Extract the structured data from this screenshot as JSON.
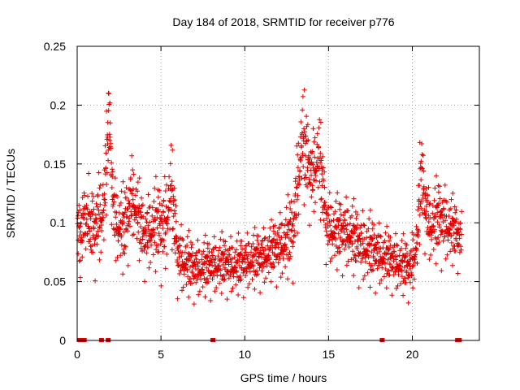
{
  "chart_data": {
    "type": "scatter",
    "title": "Day 184 of 2018, SRMTID for receiver p776",
    "xlabel": "GPS time / hours",
    "ylabel": "SRMTID / TECUs",
    "xlim": [
      0,
      24
    ],
    "ylim": [
      0,
      0.25
    ],
    "x_ticks": [
      0,
      5,
      10,
      15,
      20
    ],
    "x_tick_labels": [
      "0",
      "5",
      "10",
      "15",
      "20"
    ],
    "y_ticks": [
      0,
      0.05,
      0.1,
      0.15,
      0.2,
      0.25
    ],
    "y_tick_labels": [
      "0",
      "0.05",
      "0.1",
      "0.15",
      "0.2",
      "0.25"
    ],
    "grid": true,
    "marker": "plus",
    "color": "#e00000",
    "series": [
      {
        "name": "SRMTID",
        "trend": [
          [
            0.0,
            0.085,
            0.03
          ],
          [
            0.5,
            0.095,
            0.03
          ],
          [
            1.0,
            0.085,
            0.03
          ],
          [
            1.6,
            0.105,
            0.035
          ],
          [
            1.9,
            0.18,
            0.03
          ],
          [
            2.2,
            0.095,
            0.03
          ],
          [
            2.8,
            0.085,
            0.03
          ],
          [
            3.3,
            0.115,
            0.03
          ],
          [
            4.0,
            0.08,
            0.025
          ],
          [
            4.6,
            0.09,
            0.03
          ],
          [
            5.2,
            0.085,
            0.035
          ],
          [
            5.6,
            0.12,
            0.035
          ],
          [
            6.0,
            0.065,
            0.025
          ],
          [
            7.0,
            0.055,
            0.02
          ],
          [
            8.0,
            0.058,
            0.02
          ],
          [
            8.6,
            0.06,
            0.02
          ],
          [
            9.5,
            0.058,
            0.02
          ],
          [
            10.2,
            0.062,
            0.02
          ],
          [
            11.0,
            0.065,
            0.02
          ],
          [
            11.6,
            0.07,
            0.02
          ],
          [
            12.3,
            0.075,
            0.025
          ],
          [
            12.9,
            0.085,
            0.03
          ],
          [
            13.4,
            0.16,
            0.04
          ],
          [
            14.0,
            0.13,
            0.03
          ],
          [
            14.4,
            0.15,
            0.035
          ],
          [
            14.9,
            0.09,
            0.025
          ],
          [
            15.5,
            0.085,
            0.025
          ],
          [
            16.2,
            0.085,
            0.025
          ],
          [
            16.8,
            0.075,
            0.025
          ],
          [
            17.5,
            0.07,
            0.025
          ],
          [
            18.4,
            0.065,
            0.02
          ],
          [
            19.2,
            0.06,
            0.02
          ],
          [
            19.9,
            0.055,
            0.02
          ],
          [
            20.3,
            0.08,
            0.025
          ],
          [
            20.5,
            0.13,
            0.035
          ],
          [
            21.0,
            0.09,
            0.025
          ],
          [
            21.6,
            0.095,
            0.03
          ],
          [
            22.2,
            0.09,
            0.025
          ],
          [
            22.9,
            0.08,
            0.02
          ]
        ],
        "sample_interval_hours": 0.012,
        "x_end": 22.95
      }
    ],
    "gaps": [
      0.12,
      0.32,
      0.42,
      1.45,
      1.85,
      8.1,
      18.2,
      22.7,
      22.8
    ]
  }
}
